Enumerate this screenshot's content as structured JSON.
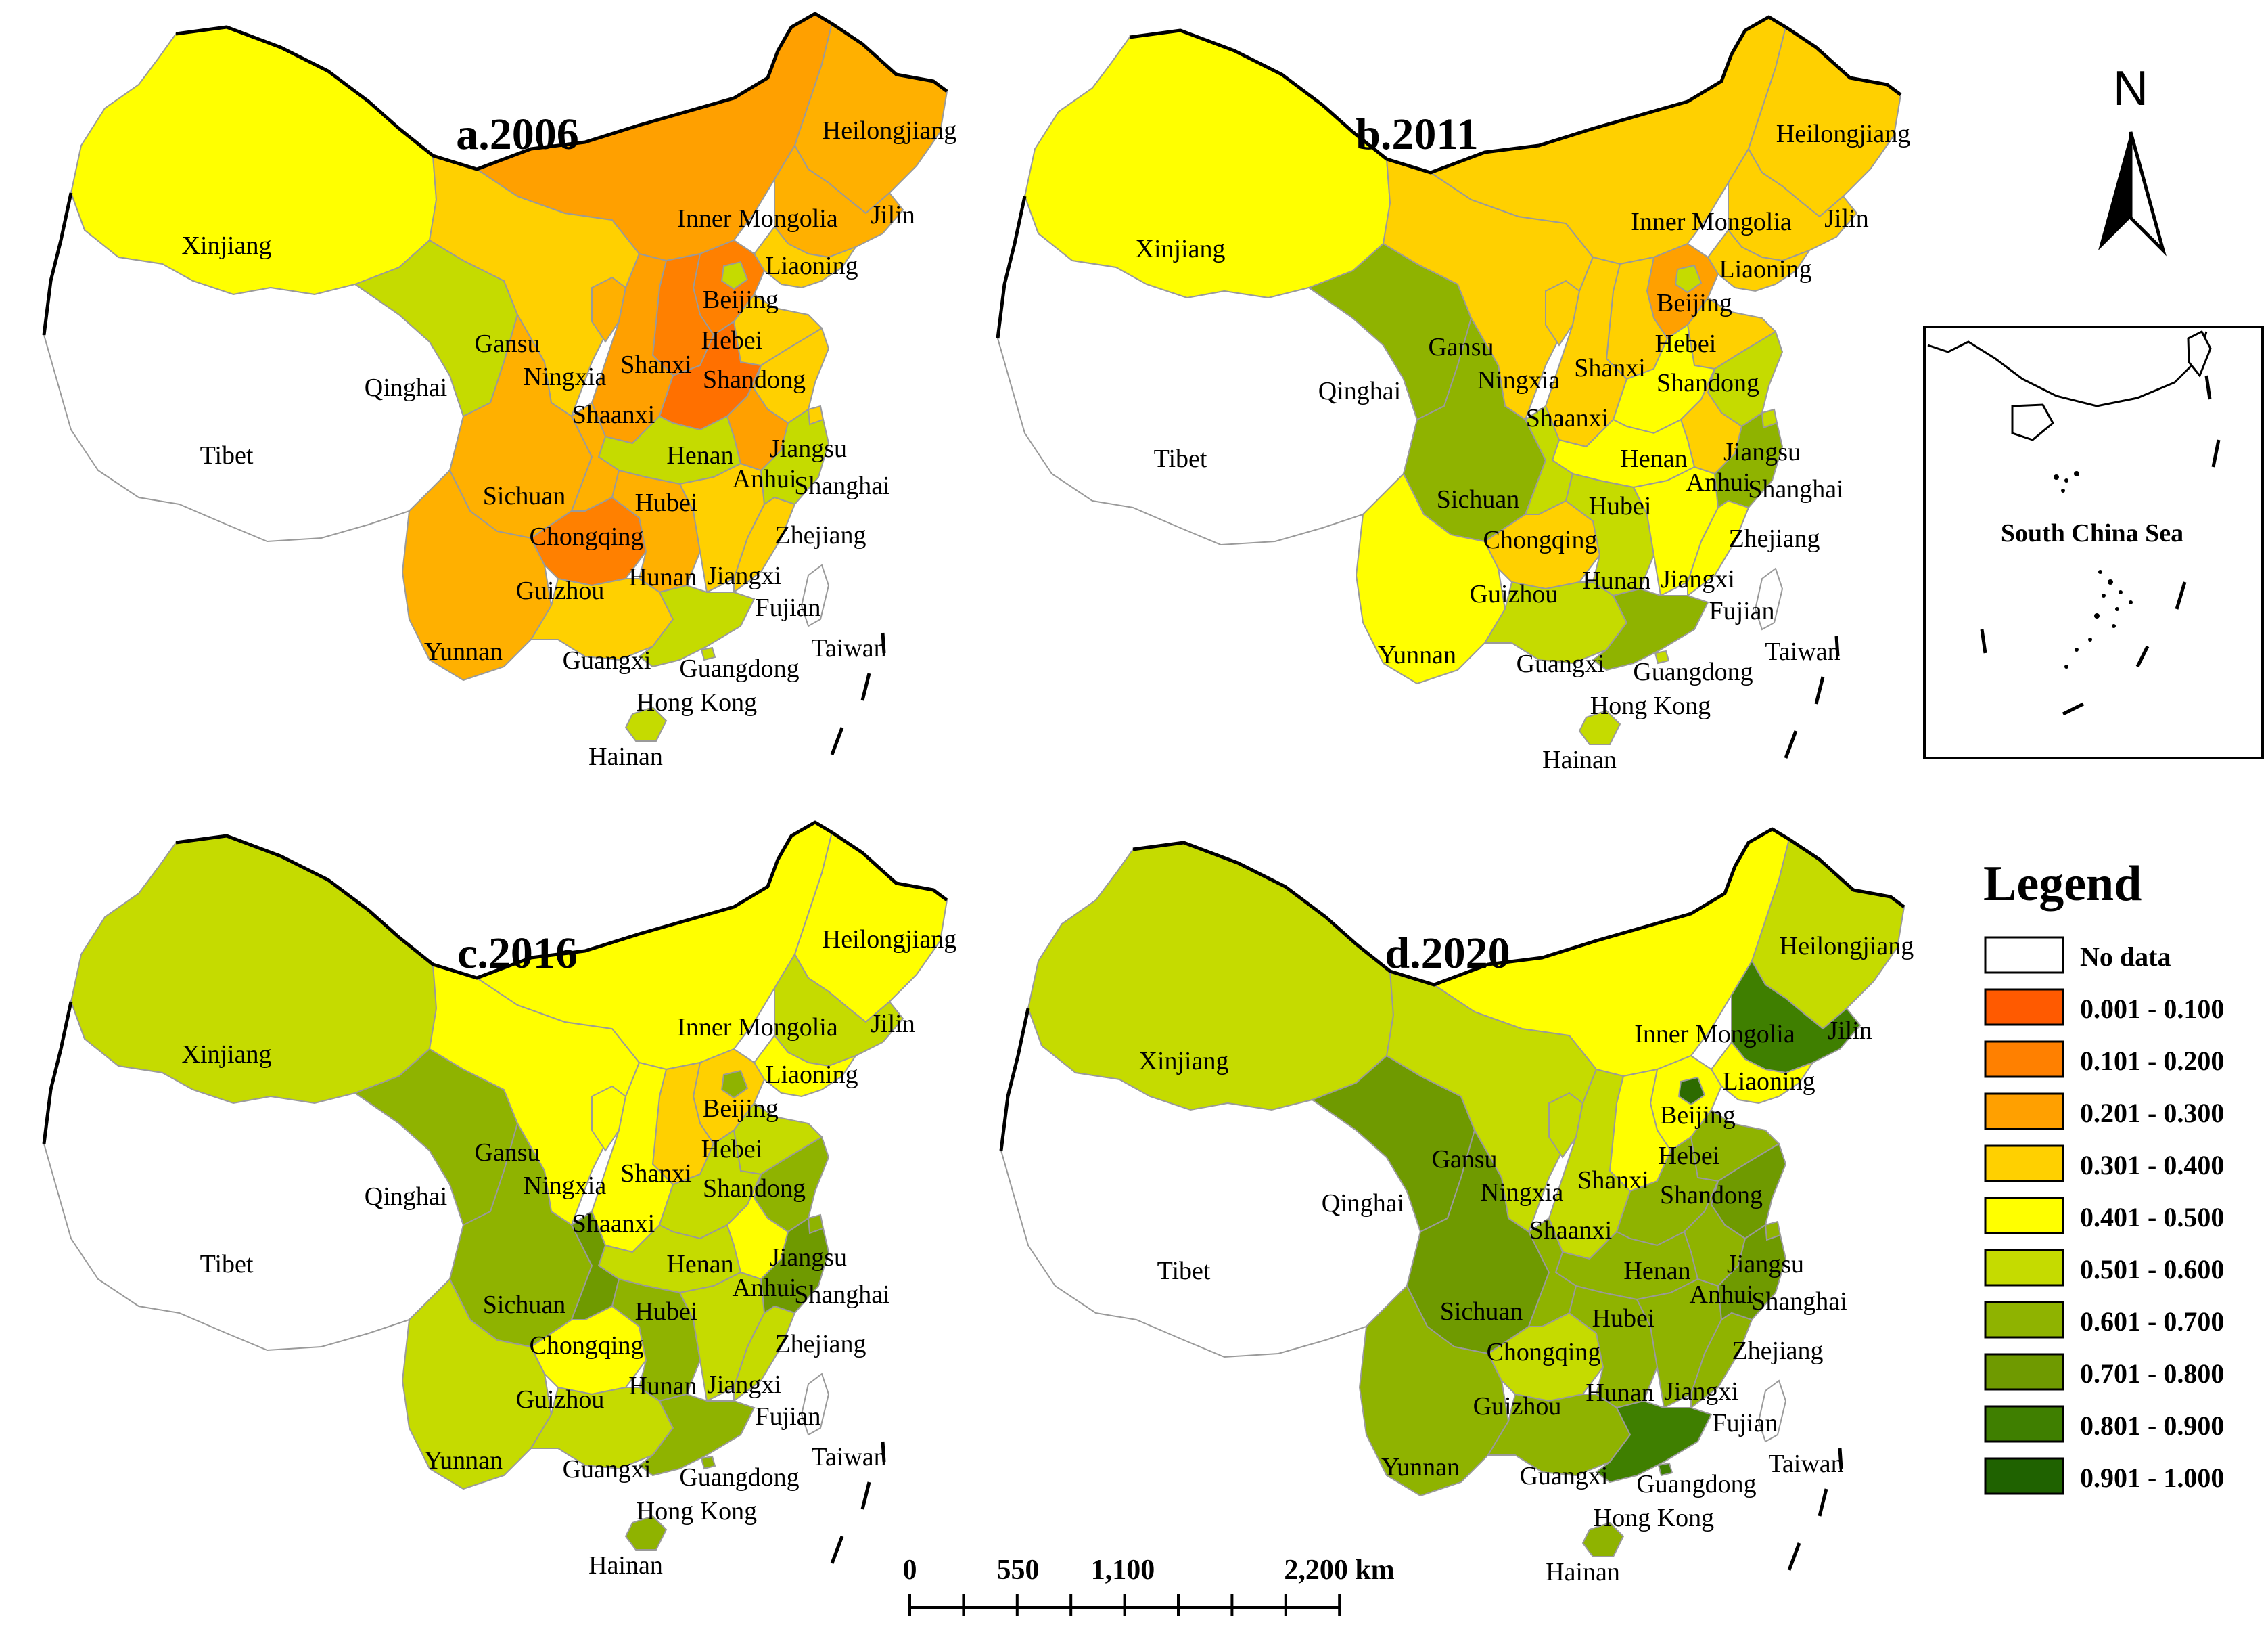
{
  "maps": [
    {
      "title": "a.2006",
      "colors": {
        "Xinjiang": "#ffff00",
        "Tibet": "#ffffff",
        "Qinghai": "#c5db00",
        "Gansu": "#ffd000",
        "Sichuan": "#ffb000",
        "Yunnan": "#ffb000",
        "Inner Mongolia": "#ffa000",
        "Heilongjiang": "#ffb000",
        "Jilin": "#ffb000",
        "Liaoning": "#ffd000",
        "Beijing": "#c5db00",
        "Hebei": "#ff8000",
        "Shanxi": "#ff8000",
        "Shandong": "#ffd000",
        "Ningxia": "#ffb000",
        "Shaanxi": "#ffa000",
        "Henan": "#ff7000",
        "Jiangsu": "#ffd000",
        "Anhui": "#ffa000",
        "Shanghai": "#ffd000",
        "Hubei": "#c5db00",
        "Chongqing": "#ffb000",
        "Guizhou": "#ff8000",
        "Hunan": "#ffb000",
        "Jiangxi": "#ffd000",
        "Zhejiang": "#c5db00",
        "Fujian": "#ffd000",
        "Guangxi": "#ffd000",
        "Guangdong": "#c5db00",
        "Hainan": "#c5db00",
        "Hong Kong": "#c5db00",
        "Taiwan": "#ffffff"
      }
    },
    {
      "title": "b.2011",
      "colors": {
        "Xinjiang": "#ffff00",
        "Tibet": "#ffffff",
        "Qinghai": "#8fb300",
        "Gansu": "#ffd000",
        "Sichuan": "#8fb300",
        "Yunnan": "#ffff00",
        "Inner Mongolia": "#ffd000",
        "Heilongjiang": "#ffd000",
        "Jilin": "#ffd000",
        "Liaoning": "#ffd000",
        "Beijing": "#c5db00",
        "Hebei": "#ffa000",
        "Shanxi": "#ffd000",
        "Shandong": "#ffd000",
        "Ningxia": "#ffd000",
        "Shaanxi": "#ffd000",
        "Henan": "#ffff00",
        "Jiangsu": "#c5db00",
        "Anhui": "#ffd000",
        "Shanghai": "#c5db00",
        "Hubei": "#ffff00",
        "Chongqing": "#c5db00",
        "Guizhou": "#ffd000",
        "Hunan": "#c5db00",
        "Jiangxi": "#ffff00",
        "Zhejiang": "#8fb300",
        "Fujian": "#ffff00",
        "Guangxi": "#c5db00",
        "Guangdong": "#8fb300",
        "Hainan": "#c5db00",
        "Hong Kong": "#c5db00",
        "Taiwan": "#ffffff"
      }
    },
    {
      "title": "c.2016",
      "colors": {
        "Xinjiang": "#c5db00",
        "Tibet": "#ffffff",
        "Qinghai": "#8fb300",
        "Gansu": "#ffff00",
        "Sichuan": "#8fb300",
        "Yunnan": "#c5db00",
        "Inner Mongolia": "#ffff00",
        "Heilongjiang": "#ffff00",
        "Jilin": "#c5db00",
        "Liaoning": "#ffff00",
        "Beijing": "#8fb300",
        "Hebei": "#ffd000",
        "Shanxi": "#ffd000",
        "Shandong": "#c5db00",
        "Ningxia": "#ffff00",
        "Shaanxi": "#ffff00",
        "Henan": "#c5db00",
        "Jiangsu": "#8fb300",
        "Anhui": "#ffff00",
        "Shanghai": "#8fb300",
        "Hubei": "#c5db00",
        "Chongqing": "#6f9a00",
        "Guizhou": "#ffff00",
        "Hunan": "#8fb300",
        "Jiangxi": "#c5db00",
        "Zhejiang": "#6f9a00",
        "Fujian": "#c5db00",
        "Guangxi": "#c5db00",
        "Guangdong": "#8fb300",
        "Hainan": "#8fb300",
        "Hong Kong": "#8fb300",
        "Taiwan": "#ffffff"
      }
    },
    {
      "title": "d.2020",
      "colors": {
        "Xinjiang": "#c5db00",
        "Tibet": "#ffffff",
        "Qinghai": "#6f9a00",
        "Gansu": "#c5db00",
        "Sichuan": "#6f9a00",
        "Yunnan": "#8fb300",
        "Inner Mongolia": "#ffff00",
        "Heilongjiang": "#c5db00",
        "Jilin": "#3f7f00",
        "Liaoning": "#ffff00",
        "Beijing": "#2d6b00",
        "Hebei": "#ffff00",
        "Shanxi": "#ffff00",
        "Shandong": "#8fb300",
        "Ningxia": "#c5db00",
        "Shaanxi": "#c5db00",
        "Henan": "#8fb300",
        "Jiangsu": "#6f9a00",
        "Anhui": "#8fb300",
        "Shanghai": "#8fb300",
        "Hubei": "#8fb300",
        "Chongqing": "#8fb300",
        "Guizhou": "#c5db00",
        "Hunan": "#8fb300",
        "Jiangxi": "#8fb300",
        "Zhejiang": "#6f9a00",
        "Fujian": "#8fb300",
        "Guangxi": "#8fb300",
        "Guangdong": "#3f7f00",
        "Hainan": "#8fb300",
        "Hong Kong": "#3f7f00",
        "Taiwan": "#ffffff"
      }
    }
  ],
  "north_label": "N",
  "inset_label": "South China Sea",
  "legend": {
    "title": "Legend",
    "items": [
      {
        "label": "No data",
        "color": "#ffffff"
      },
      {
        "label": "0.001 - 0.100",
        "color": "#ff5a00"
      },
      {
        "label": "0.101 - 0.200",
        "color": "#ff8000"
      },
      {
        "label": "0.201 - 0.300",
        "color": "#ffa000"
      },
      {
        "label": "0.301 - 0.400",
        "color": "#ffd000"
      },
      {
        "label": "0.401 - 0.500",
        "color": "#ffff00"
      },
      {
        "label": "0.501 - 0.600",
        "color": "#c5db00"
      },
      {
        "label": "0.601 - 0.700",
        "color": "#8fb300"
      },
      {
        "label": "0.701 - 0.800",
        "color": "#6f9a00"
      },
      {
        "label": "0.801 - 0.900",
        "color": "#3f7f00"
      },
      {
        "label": "0.901 - 1.000",
        "color": "#1f6200"
      }
    ]
  },
  "scale_bar": {
    "ticks": [
      "0",
      "550",
      "1,100",
      "2,200 km"
    ]
  }
}
